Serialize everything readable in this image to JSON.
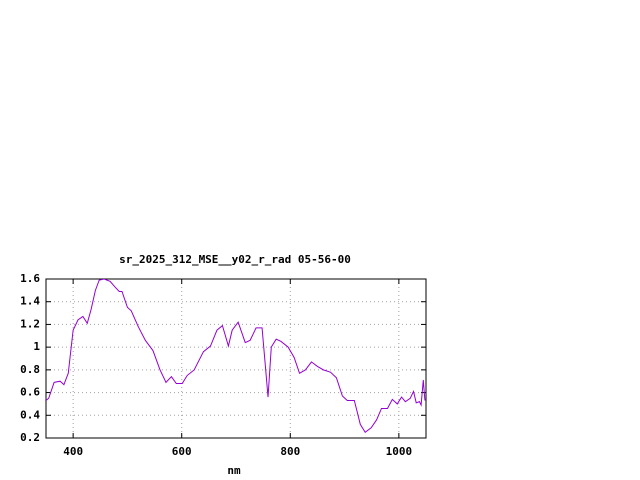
{
  "chart_data": {
    "type": "line",
    "title": "sr_2025_312_MSE__y02_r_rad 05-56-00",
    "x_label": "nm",
    "xlim": [
      350,
      1050
    ],
    "xticks": [
      400,
      600,
      800,
      1000
    ],
    "ylim": [
      0.2,
      1.6
    ],
    "yticks": [
      0.2,
      0.4,
      0.6,
      0.8,
      1,
      1.2,
      1.4,
      1.6
    ],
    "grid": true,
    "series": [
      {
        "color": "#9400d3",
        "x": [
          350,
          355,
          365,
          376,
          383,
          391,
          400,
          409,
          418,
          426,
          433,
          441,
          448,
          457,
          468,
          477,
          485,
          490,
          500,
          507,
          520,
          533,
          547,
          560,
          571,
          581,
          590,
          601,
          610,
          623,
          640,
          653,
          665,
          675,
          686,
          693,
          704,
          717,
          726,
          737,
          748,
          754,
          759,
          765,
          774,
          783,
          796,
          807,
          817,
          828,
          839,
          850,
          861,
          874,
          885,
          896,
          905,
          918,
          929,
          938,
          949,
          959,
          968,
          979,
          988,
          997,
          1005,
          1012,
          1021,
          1027,
          1032,
          1038,
          1041,
          1045,
          1048
        ],
        "values": [
          0.53,
          0.55,
          0.69,
          0.7,
          0.67,
          0.77,
          1.15,
          1.24,
          1.27,
          1.21,
          1.33,
          1.5,
          1.59,
          1.6,
          1.58,
          1.53,
          1.49,
          1.49,
          1.35,
          1.32,
          1.18,
          1.06,
          0.97,
          0.8,
          0.69,
          0.74,
          0.68,
          0.68,
          0.75,
          0.8,
          0.96,
          1.01,
          1.15,
          1.19,
          1.01,
          1.15,
          1.22,
          1.04,
          1.06,
          1.17,
          1.17,
          0.84,
          0.56,
          1.0,
          1.07,
          1.05,
          1.0,
          0.91,
          0.77,
          0.8,
          0.87,
          0.83,
          0.8,
          0.78,
          0.73,
          0.57,
          0.53,
          0.53,
          0.32,
          0.25,
          0.29,
          0.36,
          0.46,
          0.46,
          0.54,
          0.5,
          0.56,
          0.52,
          0.55,
          0.61,
          0.51,
          0.52,
          0.49,
          0.71,
          0.53
        ]
      }
    ]
  }
}
